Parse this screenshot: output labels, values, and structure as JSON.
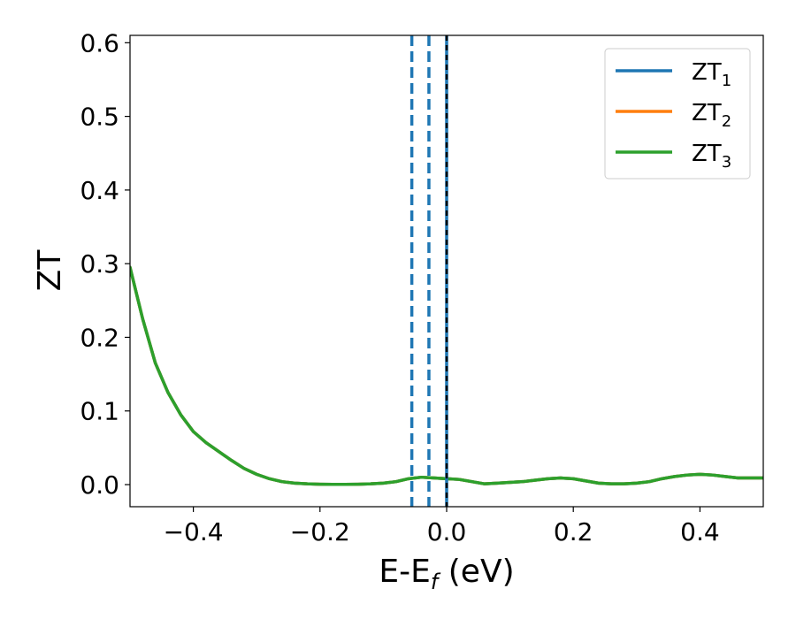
{
  "chart_data": {
    "type": "line",
    "xlabel": "E-E",
    "xlabel_sub": "f",
    "xlabel_unit": " (eV)",
    "ylabel": "ZT",
    "xlim": [
      -0.5,
      0.5
    ],
    "ylim": [
      -0.03,
      0.61
    ],
    "x_ticks": [
      -0.4,
      -0.2,
      0.0,
      0.2,
      0.4
    ],
    "x_tick_labels": [
      "−0.4",
      "−0.2",
      "0.0",
      "0.2",
      "0.4"
    ],
    "y_ticks": [
      0.0,
      0.1,
      0.2,
      0.3,
      0.4,
      0.5,
      0.6
    ],
    "y_tick_labels": [
      "0.0",
      "0.1",
      "0.2",
      "0.3",
      "0.4",
      "0.5",
      "0.6"
    ],
    "grid": false,
    "legend_position": "top-right",
    "x": [
      -0.5,
      -0.48,
      -0.46,
      -0.44,
      -0.42,
      -0.4,
      -0.38,
      -0.36,
      -0.34,
      -0.32,
      -0.3,
      -0.28,
      -0.26,
      -0.24,
      -0.22,
      -0.2,
      -0.18,
      -0.16,
      -0.14,
      -0.12,
      -0.1,
      -0.08,
      -0.06,
      -0.04,
      -0.02,
      0.0,
      0.02,
      0.04,
      0.06,
      0.08,
      0.1,
      0.12,
      0.14,
      0.16,
      0.18,
      0.2,
      0.22,
      0.24,
      0.26,
      0.28,
      0.3,
      0.32,
      0.34,
      0.36,
      0.38,
      0.4,
      0.42,
      0.44,
      0.46,
      0.48,
      0.5
    ],
    "series": [
      {
        "name": "ZT",
        "name_sub": "1",
        "color": "#1f77b4",
        "values": [
          0.295,
          0.225,
          0.165,
          0.125,
          0.095,
          0.072,
          0.057,
          0.045,
          0.033,
          0.022,
          0.014,
          0.008,
          0.004,
          0.002,
          0.001,
          0.0005,
          0.0003,
          0.0003,
          0.0005,
          0.001,
          0.002,
          0.004,
          0.008,
          0.01,
          0.009,
          0.008,
          0.007,
          0.004,
          0.001,
          0.002,
          0.003,
          0.004,
          0.006,
          0.008,
          0.009,
          0.008,
          0.005,
          0.002,
          0.001,
          0.001,
          0.002,
          0.004,
          0.008,
          0.011,
          0.013,
          0.014,
          0.013,
          0.011,
          0.009,
          0.009,
          0.009
        ]
      },
      {
        "name": "ZT",
        "name_sub": "2",
        "color": "#ff7f0e",
        "values": [
          0.295,
          0.225,
          0.165,
          0.125,
          0.095,
          0.072,
          0.057,
          0.045,
          0.033,
          0.022,
          0.014,
          0.008,
          0.004,
          0.002,
          0.001,
          0.0005,
          0.0003,
          0.0003,
          0.0005,
          0.001,
          0.002,
          0.004,
          0.008,
          0.01,
          0.009,
          0.008,
          0.007,
          0.004,
          0.001,
          0.002,
          0.003,
          0.004,
          0.006,
          0.008,
          0.009,
          0.008,
          0.005,
          0.002,
          0.001,
          0.001,
          0.002,
          0.004,
          0.008,
          0.011,
          0.013,
          0.014,
          0.013,
          0.011,
          0.009,
          0.009,
          0.009
        ]
      },
      {
        "name": "ZT",
        "name_sub": "3",
        "color": "#2ca02c",
        "values": [
          0.295,
          0.225,
          0.165,
          0.125,
          0.095,
          0.072,
          0.057,
          0.045,
          0.033,
          0.022,
          0.014,
          0.008,
          0.004,
          0.002,
          0.001,
          0.0005,
          0.0003,
          0.0003,
          0.0005,
          0.001,
          0.002,
          0.004,
          0.008,
          0.01,
          0.009,
          0.008,
          0.007,
          0.004,
          0.001,
          0.002,
          0.003,
          0.004,
          0.006,
          0.008,
          0.009,
          0.008,
          0.005,
          0.002,
          0.001,
          0.001,
          0.002,
          0.004,
          0.008,
          0.011,
          0.013,
          0.014,
          0.013,
          0.011,
          0.009,
          0.009,
          0.009
        ]
      }
    ],
    "vertical_lines": [
      {
        "x": -0.055,
        "color": "#1f77b4",
        "style": "dashed"
      },
      {
        "x": -0.028,
        "color": "#1f77b4",
        "style": "dashed"
      },
      {
        "x": 0.0,
        "color": "#1f77b4",
        "style": "solid"
      },
      {
        "x": 0.0,
        "color": "#000000",
        "style": "dotted"
      }
    ]
  }
}
